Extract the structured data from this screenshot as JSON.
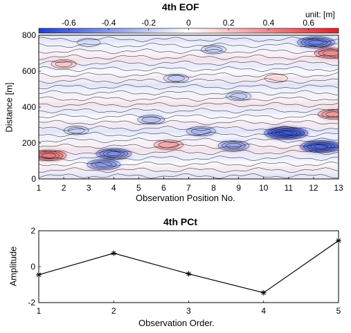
{
  "chart_data": [
    {
      "type": "heatmap",
      "title": "4th EOF",
      "xlabel": "Observation Position No.",
      "ylabel": "Distance [m]",
      "unit_label": "unit: [m]",
      "xlim": [
        1,
        13
      ],
      "ylim": [
        0,
        800
      ],
      "xticks": [
        1,
        2,
        3,
        4,
        5,
        6,
        7,
        8,
        9,
        10,
        11,
        12,
        13
      ],
      "yticks": [
        0,
        200,
        400,
        600,
        800
      ],
      "colorbar": {
        "ticks": [
          -0.6,
          -0.4,
          -0.2,
          0,
          0.2,
          0.4,
          0.6
        ],
        "tick_labels": [
          "-0.6",
          "-0.4",
          "-0.2",
          "0",
          "0.2",
          "0.4",
          "0.6"
        ],
        "range": [
          -0.75,
          0.75
        ],
        "colors": [
          "#1f3fd8",
          "#ffffff",
          "#e0202a"
        ]
      },
      "features": [
        {
          "x": 10.9,
          "y": 255,
          "value": -0.65
        },
        {
          "x": 12.3,
          "y": 180,
          "value": -0.6
        },
        {
          "x": 4.0,
          "y": 140,
          "value": -0.45
        },
        {
          "x": 3.6,
          "y": 80,
          "value": -0.4
        },
        {
          "x": 8.8,
          "y": 185,
          "value": -0.35
        },
        {
          "x": 1.4,
          "y": 130,
          "value": 0.45
        },
        {
          "x": 6.2,
          "y": 190,
          "value": 0.3
        },
        {
          "x": 12.8,
          "y": 360,
          "value": 0.35
        },
        {
          "x": 12.7,
          "y": 700,
          "value": 0.4
        },
        {
          "x": 12.1,
          "y": 760,
          "value": -0.5
        },
        {
          "x": 5.5,
          "y": 330,
          "value": -0.25
        },
        {
          "x": 9.0,
          "y": 460,
          "value": -0.2
        },
        {
          "x": 2.0,
          "y": 640,
          "value": 0.2
        },
        {
          "x": 6.5,
          "y": 560,
          "value": -0.2
        },
        {
          "x": 8.0,
          "y": 720,
          "value": -0.2
        },
        {
          "x": 3.0,
          "y": 760,
          "value": -0.15
        },
        {
          "x": 10.5,
          "y": 560,
          "value": 0.15
        },
        {
          "x": 7.5,
          "y": 265,
          "value": -0.3
        },
        {
          "x": 2.5,
          "y": 270,
          "value": -0.2
        }
      ]
    },
    {
      "type": "line",
      "title": "4th PCt",
      "xlabel": "Observation Order.",
      "ylabel": "Amplitude",
      "x": [
        1,
        2,
        3,
        4,
        5
      ],
      "series": [
        {
          "values": [
            -0.45,
            0.75,
            -0.4,
            -1.45,
            1.45
          ]
        }
      ],
      "xlim": [
        1,
        5
      ],
      "ylim": [
        -2,
        2
      ],
      "xticks": [
        1,
        2,
        3,
        4,
        5
      ],
      "yticks": [
        -2,
        0,
        2
      ],
      "marker": "asterisk",
      "line_color": "#000000"
    }
  ]
}
